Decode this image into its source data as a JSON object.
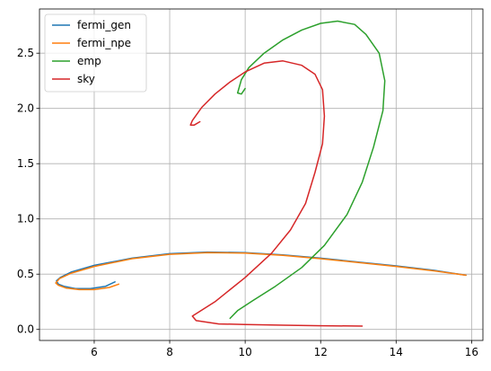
{
  "chart_data": {
    "type": "line",
    "title": "",
    "xlabel": "",
    "ylabel": "",
    "xlim": [
      4.55,
      16.3
    ],
    "ylim": [
      -0.1,
      2.9
    ],
    "x_ticks": [
      6,
      8,
      10,
      12,
      14,
      16
    ],
    "y_ticks": [
      0.0,
      0.5,
      1.0,
      1.5,
      2.0,
      2.5
    ],
    "x_tick_labels": [
      "6",
      "8",
      "10",
      "12",
      "14",
      "16"
    ],
    "y_tick_labels": [
      "0.0",
      "0.5",
      "1.0",
      "1.5",
      "2.0",
      "2.5"
    ],
    "grid": true,
    "legend_position": "upper-left",
    "series": [
      {
        "name": "fermi_gen",
        "color": "#1f77b4",
        "x": [
          6.55,
          6.3,
          5.9,
          5.5,
          5.2,
          5.05,
          5.0,
          5.1,
          5.4,
          6.0,
          7.0,
          8.0,
          9.0,
          10.0,
          11.0,
          12.0,
          13.0,
          14.0,
          15.0,
          15.85
        ],
        "y": [
          0.43,
          0.39,
          0.37,
          0.37,
          0.39,
          0.41,
          0.44,
          0.47,
          0.52,
          0.58,
          0.645,
          0.685,
          0.7,
          0.695,
          0.675,
          0.645,
          0.61,
          0.575,
          0.535,
          0.49
        ]
      },
      {
        "name": "fermi_npe",
        "color": "#ff7f0e",
        "x": [
          6.65,
          6.4,
          6.0,
          5.6,
          5.25,
          5.05,
          4.98,
          5.08,
          5.4,
          6.0,
          7.0,
          8.0,
          9.0,
          10.0,
          11.0,
          12.0,
          13.0,
          14.0,
          15.0,
          15.85
        ],
        "y": [
          0.41,
          0.38,
          0.36,
          0.36,
          0.375,
          0.4,
          0.42,
          0.46,
          0.51,
          0.57,
          0.64,
          0.68,
          0.695,
          0.69,
          0.67,
          0.64,
          0.605,
          0.57,
          0.53,
          0.49
        ]
      },
      {
        "name": "emp",
        "color": "#2ca02c",
        "x": [
          9.6,
          9.8,
          10.2,
          10.8,
          11.5,
          12.1,
          12.7,
          13.1,
          13.4,
          13.65,
          13.7,
          13.55,
          13.2,
          12.9,
          12.45,
          12.0,
          11.5,
          11.0,
          10.5,
          10.1,
          9.9,
          9.8,
          9.9,
          10.0
        ],
        "y": [
          0.1,
          0.17,
          0.26,
          0.39,
          0.56,
          0.76,
          1.04,
          1.33,
          1.65,
          1.98,
          2.25,
          2.5,
          2.67,
          2.76,
          2.79,
          2.77,
          2.71,
          2.62,
          2.5,
          2.37,
          2.26,
          2.14,
          2.13,
          2.18
        ]
      },
      {
        "name": "sky",
        "color": "#d62728",
        "x": [
          13.1,
          12.0,
          11.0,
          10.0,
          9.3,
          8.7,
          8.6,
          9.2,
          10.0,
          10.7,
          11.2,
          11.6,
          11.85,
          12.05,
          12.1,
          12.05,
          11.85,
          11.5,
          11.0,
          10.5,
          10.0,
          9.6,
          9.2,
          8.85,
          8.6,
          8.55,
          8.65,
          8.8
        ],
        "y": [
          0.03,
          0.033,
          0.038,
          0.045,
          0.05,
          0.08,
          0.12,
          0.25,
          0.47,
          0.69,
          0.9,
          1.14,
          1.42,
          1.68,
          1.93,
          2.17,
          2.31,
          2.39,
          2.43,
          2.41,
          2.33,
          2.24,
          2.13,
          2.01,
          1.89,
          1.85,
          1.85,
          1.88
        ]
      }
    ]
  }
}
